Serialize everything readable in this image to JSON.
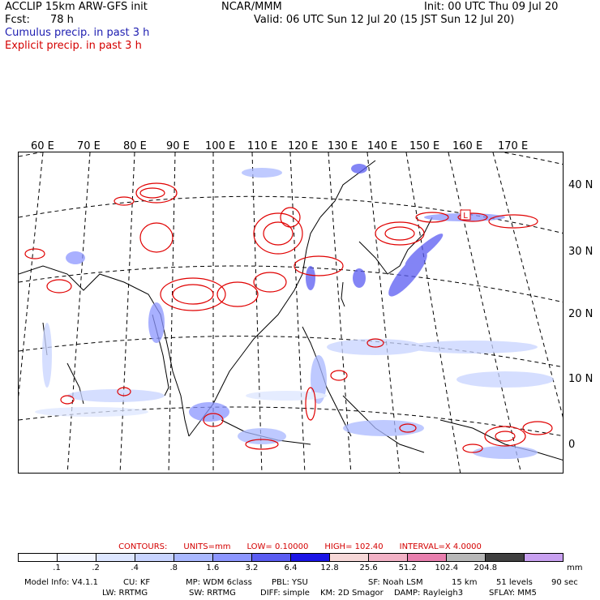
{
  "header": {
    "model": "ACCLIP 15km ARW-GFS init",
    "center": "NCAR/MMM",
    "init": "Init: 00 UTC Thu 09 Jul 20",
    "fcst_label": "Fcst:",
    "fcst_value": "78 h",
    "valid": "Valid: 06 UTC Sun 12 Jul 20 (15 JST Sun 12 Jul 20)",
    "field1": "Cumulus precip. in past 3 h",
    "field2": "Explicit precip. in past 3 h"
  },
  "map": {
    "longitude_labels": [
      "60 E",
      "70 E",
      "80 E",
      "90 E",
      "100 E",
      "110 E",
      "120 E",
      "130 E",
      "140 E",
      "150 E",
      "160 E",
      "170 E"
    ],
    "latitude_labels": [
      "40 N",
      "30 N",
      "20 N",
      "10 N",
      "0"
    ],
    "region": "Asia-Pacific",
    "marker_label": "L"
  },
  "contours": {
    "label": "CONTOURS:",
    "units": "UNITS=mm",
    "low": "LOW= 0.10000",
    "high": "HIGH= 102.40",
    "interval": "INTERVAL=X 4.0000"
  },
  "colorbar": {
    "unit": "mm",
    "labels": [
      ".1",
      ".2",
      ".4",
      ".8",
      "1.6",
      "3.2",
      "6.4",
      "12.8",
      "25.6",
      "51.2",
      "102.4",
      "204.8"
    ],
    "colors": [
      "#ffffff",
      "#f3f6ff",
      "#dde6ff",
      "#c8d4ff",
      "#a9b8ff",
      "#8c96ff",
      "#5a5cf2",
      "#1a14e6",
      "#f6d8d8",
      "#f2b2c6",
      "#e87fae",
      "#b8b8b8",
      "#404040",
      "#c8a0f0"
    ]
  },
  "model_info": {
    "line1": [
      "Model Info: V4.1.1",
      "CU: KF",
      "MP: WDM 6class",
      "PBL: YSU",
      "SF: Noah LSM",
      "15 km",
      "51 levels",
      "90 sec"
    ],
    "line2": [
      "LW: RRTMG",
      "SW: RRTMG",
      "DIFF: simple",
      "KM: 2D Smagor",
      "DAMP: Rayleigh3",
      "SFLAY: MM5"
    ]
  }
}
